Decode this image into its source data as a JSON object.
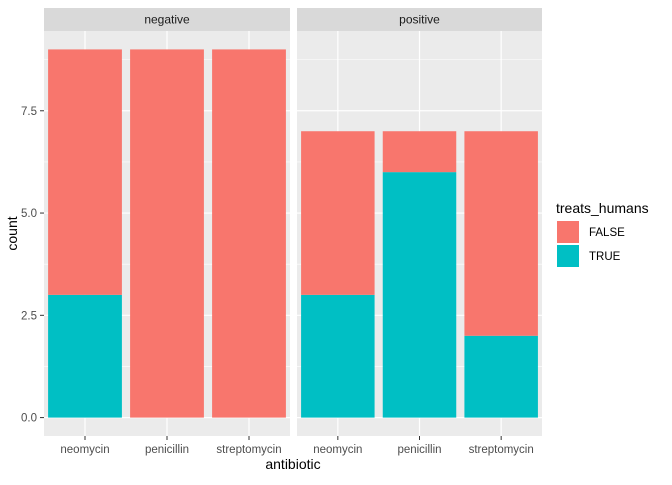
{
  "chart_data": {
    "type": "bar",
    "stacked": true,
    "faceted_by": [
      "negative",
      "positive"
    ],
    "categories": [
      "neomycin",
      "penicillin",
      "streptomycin"
    ],
    "xlabel": "antibiotic",
    "ylabel": "count",
    "ylim": [
      0,
      9
    ],
    "yticks": [
      "0.0",
      "2.5",
      "5.0",
      "7.5"
    ],
    "ytick_values": [
      0,
      2.5,
      5,
      7.5
    ],
    "grid": true,
    "legend": {
      "title": "treats_humans",
      "position": "right",
      "entries": [
        "FALSE",
        "TRUE"
      ]
    },
    "colors": {
      "FALSE": "#F8766D",
      "TRUE": "#00BFC4",
      "panel": "#EBEBEB",
      "strip": "#D9D9D9",
      "grid": "#FFFFFF"
    },
    "panels": [
      {
        "label": "negative",
        "series": [
          {
            "name": "FALSE",
            "values": [
              6,
              9,
              9
            ]
          },
          {
            "name": "TRUE",
            "values": [
              3,
              0,
              0
            ]
          }
        ]
      },
      {
        "label": "positive",
        "series": [
          {
            "name": "FALSE",
            "values": [
              4,
              1,
              5
            ]
          },
          {
            "name": "TRUE",
            "values": [
              3,
              6,
              2
            ]
          }
        ]
      }
    ]
  }
}
